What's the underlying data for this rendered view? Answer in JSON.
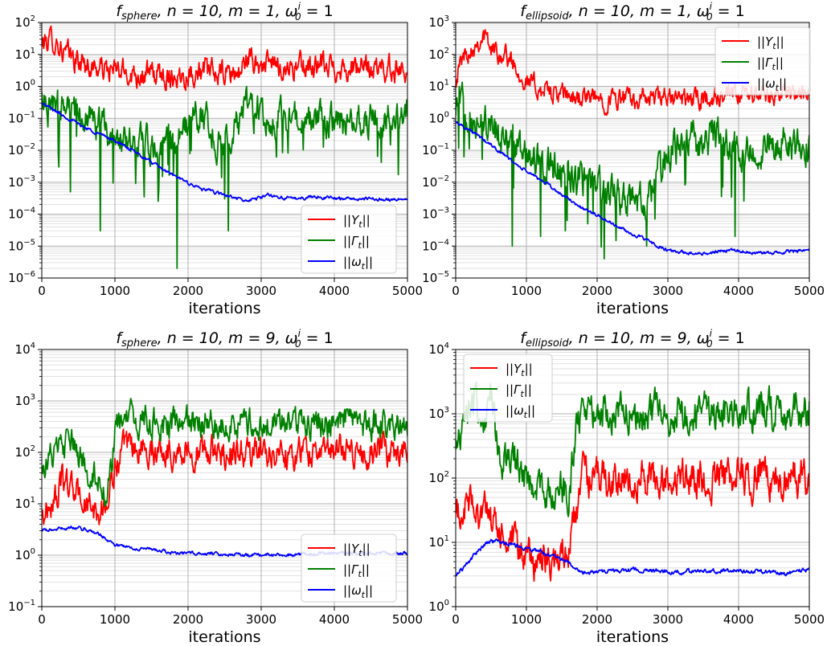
{
  "chart_data": [
    {
      "type": "line",
      "title": "f_sphere, n = 10, m = 1, ω_0^i = 1",
      "title_parts": {
        "fn": "f",
        "fn_sub": "sphere",
        "rest": ", n = 10, m = 1, ω",
        "omega_sub": "0",
        "omega_sup": "i",
        "tail": " = 1"
      },
      "xlabel": "iterations",
      "ylabel": "",
      "yscale": "log",
      "xlim": [
        0,
        5000
      ],
      "ylim_exp": [
        -6,
        2
      ],
      "xticks": [
        "0",
        "1000",
        "2000",
        "3000",
        "4000",
        "5000"
      ],
      "yticks": [
        {
          "base": "10",
          "exp": "−6"
        },
        {
          "base": "10",
          "exp": "−5"
        },
        {
          "base": "10",
          "exp": "−4"
        },
        {
          "base": "10",
          "exp": "−3"
        },
        {
          "base": "10",
          "exp": "−2"
        },
        {
          "base": "10",
          "exp": "−1"
        },
        {
          "base": "10",
          "exp": "0"
        },
        {
          "base": "10",
          "exp": "1"
        },
        {
          "base": "10",
          "exp": "2"
        }
      ],
      "grid": true,
      "legend": "lower-right",
      "series": [
        {
          "name": "||Y_t||",
          "label": "||Yt||",
          "color": "#ff0000",
          "x": [
            0,
            100,
            200,
            300,
            400,
            500,
            700,
            1000,
            1300,
            1600,
            1900,
            2100,
            2400,
            2700,
            2800,
            2900,
            3000,
            3300,
            3600,
            4000,
            4400,
            4800,
            5000
          ],
          "y": [
            20,
            30,
            25,
            12,
            8,
            6,
            4,
            3,
            2.5,
            2.2,
            2.2,
            3,
            2.5,
            2.5,
            8,
            5,
            5,
            4,
            4,
            4,
            3.5,
            3.5,
            4
          ],
          "noise": 0.6
        },
        {
          "name": "||Γ_t||",
          "label": "||Γt||",
          "color": "#008000",
          "x": [
            0,
            200,
            500,
            800,
            1000,
            1300,
            1600,
            1800,
            2000,
            2200,
            2400,
            2600,
            2800,
            3000,
            3300,
            3600,
            4000,
            4500,
            5000
          ],
          "y": [
            0.5,
            0.3,
            0.1,
            0.05,
            0.03,
            0.02,
            0.015,
            0.015,
            0.06,
            0.2,
            0.02,
            0.02,
            0.3,
            0.15,
            0.1,
            0.08,
            0.07,
            0.08,
            0.1
          ],
          "noise": 0.8,
          "spikes": [
            [
              230,
              0.003
            ],
            [
              390,
              0.0005
            ],
            [
              800,
              3e-05
            ],
            [
              1400,
              3e-06
            ],
            [
              1850,
              2e-06
            ],
            [
              2550,
              3e-05
            ],
            [
              2500,
              0.0003
            ]
          ]
        },
        {
          "name": "||ω_t||",
          "label": "||ωt||",
          "color": "#0000ff",
          "x": [
            0,
            300,
            600,
            1000,
            1300,
            1600,
            1900,
            2200,
            2500,
            2800,
            3100,
            3400,
            3700,
            4000,
            4300,
            4600,
            4800,
            5000
          ],
          "y": [
            0.3,
            0.12,
            0.05,
            0.02,
            0.008,
            0.003,
            0.0012,
            0.0006,
            0.0004,
            0.00025,
            0.0004,
            0.0003,
            0.00035,
            0.00032,
            0.0003,
            0.0003,
            0.00028,
            0.0003
          ],
          "noise": 0.08
        }
      ]
    },
    {
      "type": "line",
      "title": "f_ellipsoid, n = 10, m = 1, ω_0^i = 1",
      "title_parts": {
        "fn": "f",
        "fn_sub": "ellipsoid",
        "rest": ", n = 10, m = 1, ω",
        "omega_sub": "0",
        "omega_sup": "i",
        "tail": " = 1"
      },
      "xlabel": "iterations",
      "ylabel": "",
      "yscale": "log",
      "xlim": [
        0,
        5000
      ],
      "ylim_exp": [
        -5,
        3
      ],
      "xticks": [
        "0",
        "1000",
        "2000",
        "3000",
        "4000",
        "5000"
      ],
      "yticks": [
        {
          "base": "10",
          "exp": "−5"
        },
        {
          "base": "10",
          "exp": "−4"
        },
        {
          "base": "10",
          "exp": "−3"
        },
        {
          "base": "10",
          "exp": "−2"
        },
        {
          "base": "10",
          "exp": "−1"
        },
        {
          "base": "10",
          "exp": "0"
        },
        {
          "base": "10",
          "exp": "1"
        },
        {
          "base": "10",
          "exp": "2"
        },
        {
          "base": "10",
          "exp": "3"
        }
      ],
      "grid": true,
      "legend": "upper-right",
      "series": [
        {
          "name": "||Y_t||",
          "label": "||Yt||",
          "color": "#ff0000",
          "x": [
            0,
            100,
            200,
            300,
            400,
            500,
            600,
            700,
            800,
            900,
            1000,
            1200,
            1500,
            2000,
            2500,
            3000,
            3500,
            4000,
            4500,
            5000
          ],
          "y": [
            20,
            80,
            150,
            250,
            400,
            150,
            120,
            100,
            60,
            30,
            15,
            8,
            5,
            4,
            4,
            4,
            4,
            5,
            6,
            5
          ],
          "noise": 0.5
        },
        {
          "name": "||Γ_t||",
          "label": "||Γt||",
          "color": "#008000",
          "x": [
            0,
            300,
            600,
            900,
            1200,
            1500,
            1800,
            2100,
            2400,
            2700,
            2900,
            3100,
            3400,
            3700,
            3800,
            4000,
            4300,
            4700,
            5000
          ],
          "y": [
            3,
            1,
            0.3,
            0.1,
            0.03,
            0.02,
            0.01,
            0.005,
            0.003,
            0.003,
            0.03,
            0.1,
            0.2,
            0.3,
            0.15,
            0.1,
            0.15,
            0.2,
            0.15
          ],
          "noise": 0.9,
          "spikes": [
            [
              800,
              0.0001
            ],
            [
              1200,
              0.0002
            ],
            [
              1550,
              0.0003
            ],
            [
              1870,
              0.0005
            ],
            [
              2100,
              4e-05
            ],
            [
              2700,
              0.0001
            ],
            [
              3950,
              0.0002
            ]
          ]
        },
        {
          "name": "||ω_t||",
          "label": "||ωt||",
          "color": "#0000ff",
          "x": [
            0,
            300,
            600,
            900,
            1200,
            1500,
            1800,
            2100,
            2400,
            2700,
            3000,
            3300,
            3600,
            3900,
            4200,
            4500,
            4800,
            5000
          ],
          "y": [
            0.8,
            0.3,
            0.1,
            0.03,
            0.012,
            0.004,
            0.0015,
            0.0007,
            0.0003,
            0.00015,
            7e-05,
            6e-05,
            6e-05,
            8e-05,
            6e-05,
            6e-05,
            7e-05,
            7e-05
          ],
          "noise": 0.08
        }
      ]
    },
    {
      "type": "line",
      "title": "f_sphere, n = 10, m = 9, ω_0^i = 1",
      "title_parts": {
        "fn": "f",
        "fn_sub": "sphere",
        "rest": ", n = 10, m = 9, ω",
        "omega_sub": "0",
        "omega_sup": "i",
        "tail": " = 1"
      },
      "xlabel": "iterations",
      "ylabel": "",
      "yscale": "log",
      "xlim": [
        0,
        5000
      ],
      "ylim_exp": [
        -1,
        4
      ],
      "xticks": [
        "0",
        "1000",
        "2000",
        "3000",
        "4000",
        "5000"
      ],
      "yticks": [
        {
          "base": "10",
          "exp": "−1"
        },
        {
          "base": "10",
          "exp": "0"
        },
        {
          "base": "10",
          "exp": "1"
        },
        {
          "base": "10",
          "exp": "2"
        },
        {
          "base": "10",
          "exp": "3"
        },
        {
          "base": "10",
          "exp": "4"
        }
      ],
      "grid": true,
      "legend": "lower-right",
      "series": [
        {
          "name": "||Y_t||",
          "label": "||Yt||",
          "color": "#ff0000",
          "x": [
            0,
            150,
            300,
            450,
            600,
            750,
            900,
            1000,
            1100,
            1300,
            1600,
            2000,
            2500,
            3000,
            3500,
            4000,
            4500,
            5000
          ],
          "y": [
            6,
            10,
            30,
            18,
            10,
            6,
            10,
            50,
            100,
            120,
            110,
            100,
            100,
            100,
            100,
            110,
            100,
            110
          ],
          "noise": 0.45
        },
        {
          "name": "||Γ_t||",
          "label": "||Γt||",
          "color": "#008000",
          "x": [
            0,
            200,
            400,
            600,
            800,
            900,
            1000,
            1100,
            1300,
            1600,
            2000,
            2500,
            3000,
            3500,
            4000,
            4500,
            5000
          ],
          "y": [
            60,
            100,
            150,
            50,
            30,
            15,
            200,
            500,
            400,
            350,
            350,
            350,
            350,
            400,
            350,
            350,
            350
          ],
          "noise": 0.45
        },
        {
          "name": "||ω_t||",
          "label": "||ωt||",
          "color": "#0000ff",
          "x": [
            0,
            200,
            400,
            600,
            800,
            1000,
            1200,
            1500,
            1800,
            2100,
            2500,
            3000,
            3500,
            4000,
            4500,
            5000
          ],
          "y": [
            3,
            3.2,
            3.5,
            3.2,
            2.5,
            1.6,
            1.4,
            1.3,
            1.1,
            1.1,
            1.05,
            1.0,
            1.05,
            1.1,
            1.1,
            1.1
          ],
          "noise": 0.05
        }
      ]
    },
    {
      "type": "line",
      "title": "f_ellipsoid, n = 10, m = 9, ω_0^i = 1",
      "title_parts": {
        "fn": "f",
        "fn_sub": "ellipsoid",
        "rest": ", n = 10, m = 9, ω",
        "omega_sub": "0",
        "omega_sup": "i",
        "tail": " = 1"
      },
      "xlabel": "iterations",
      "ylabel": "",
      "yscale": "log",
      "xlim": [
        0,
        5000
      ],
      "ylim_exp": [
        0,
        4
      ],
      "xticks": [
        "0",
        "1000",
        "2000",
        "3000",
        "4000",
        "5000"
      ],
      "yticks": [
        {
          "base": "10",
          "exp": "0"
        },
        {
          "base": "10",
          "exp": "1"
        },
        {
          "base": "10",
          "exp": "2"
        },
        {
          "base": "10",
          "exp": "3"
        },
        {
          "base": "10",
          "exp": "4"
        }
      ],
      "grid": true,
      "legend": "upper-left",
      "series": [
        {
          "name": "||Y_t||",
          "label": "||Yt||",
          "color": "#ff0000",
          "x": [
            0,
            200,
            400,
            600,
            800,
            1000,
            1200,
            1400,
            1600,
            1700,
            1800,
            2000,
            2500,
            3000,
            3500,
            4000,
            4500,
            5000
          ],
          "y": [
            25,
            40,
            30,
            15,
            8,
            6,
            5,
            5,
            8,
            30,
            100,
            100,
            100,
            100,
            100,
            100,
            100,
            110
          ],
          "noise": 0.45
        },
        {
          "name": "||Γ_t||",
          "label": "||Γt||",
          "color": "#008000",
          "x": [
            0,
            100,
            250,
            400,
            500,
            600,
            800,
            1000,
            1200,
            1400,
            1600,
            1700,
            1800,
            2000,
            2500,
            3000,
            3500,
            4000,
            4500,
            5000
          ],
          "y": [
            200,
            1000,
            1500,
            800,
            2000,
            200,
            150,
            100,
            70,
            60,
            60,
            600,
            1500,
            1200,
            1000,
            1000,
            1100,
            1000,
            1100,
            1000
          ],
          "noise": 0.45
        },
        {
          "name": "||ω_t||",
          "label": "||ωt||",
          "color": "#0000ff",
          "x": [
            0,
            150,
            300,
            450,
            600,
            800,
            1000,
            1200,
            1400,
            1600,
            1700,
            1800,
            2100,
            2500,
            3000,
            3500,
            4000,
            4500,
            4700,
            5000
          ],
          "y": [
            3,
            4.5,
            7,
            10,
            10.5,
            9,
            8,
            7,
            6,
            5,
            4,
            3.5,
            3.5,
            3.8,
            3.5,
            3.6,
            3.6,
            3.5,
            3.3,
            3.8
          ],
          "noise": 0.05
        }
      ]
    }
  ]
}
